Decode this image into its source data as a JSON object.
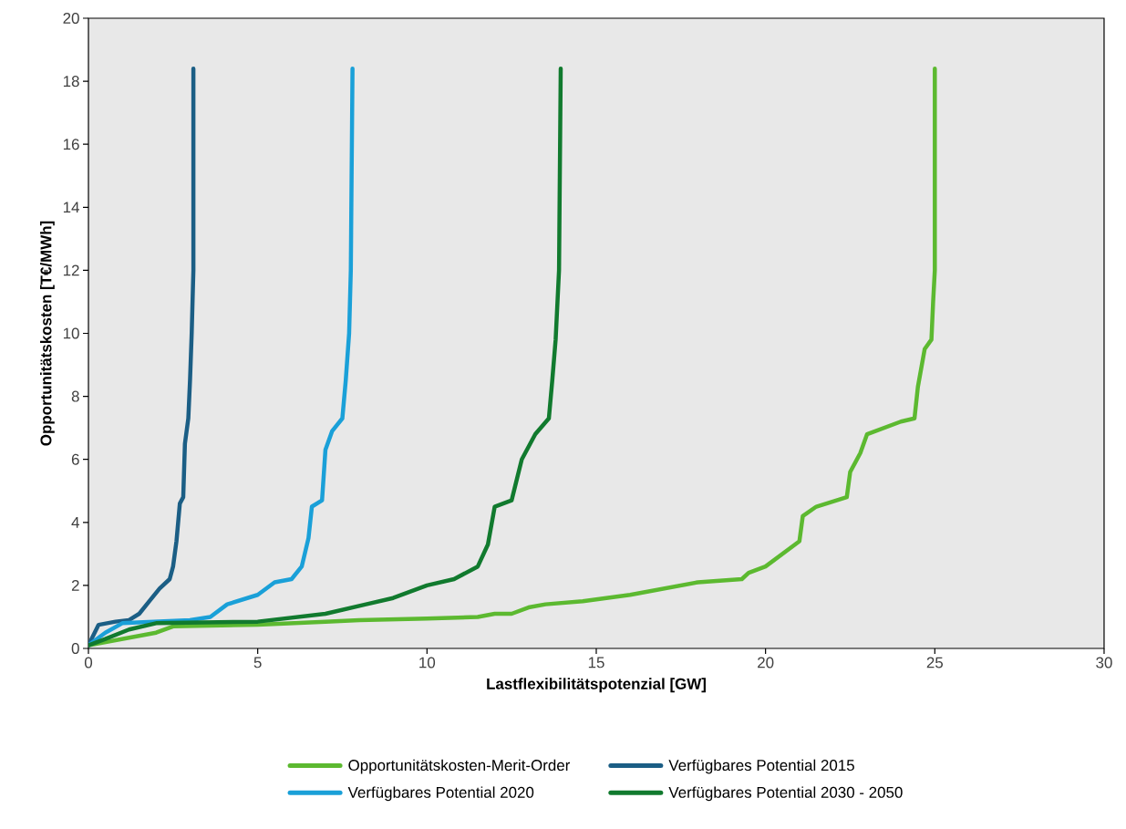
{
  "chart_data": {
    "type": "line",
    "xlabel": "Lastflexibilitätspotenzial [GW]",
    "ylabel": "Opportunitätskosten [T€/MWh]",
    "xlim": [
      0,
      30
    ],
    "xticks": [
      0,
      5,
      10,
      15,
      20,
      25,
      30
    ],
    "ylim": [
      0,
      20
    ],
    "yticks": [
      0,
      2,
      4,
      6,
      8,
      10,
      12,
      14,
      16,
      18,
      20
    ],
    "grid": false,
    "legend": "bottom",
    "marker": "none",
    "line_style": "solid",
    "series": [
      {
        "name": "Opportunitätskosten-Merit-Order",
        "color": "#5cb930",
        "x": [
          0,
          1,
          2,
          2.5,
          5,
          7,
          8,
          10,
          11.5,
          12,
          12.5,
          13,
          13.5,
          14.6,
          16,
          17,
          18,
          19.3,
          19.5,
          20,
          20.5,
          21,
          21.1,
          21.5,
          22.4,
          22.5,
          22.8,
          23,
          23.5,
          24,
          24.4,
          24.5,
          24.7,
          24.9,
          24.95,
          25,
          25
        ],
        "values": [
          0.1,
          0.3,
          0.5,
          0.7,
          0.75,
          0.85,
          0.9,
          0.95,
          1.0,
          1.1,
          1.1,
          1.3,
          1.4,
          1.5,
          1.7,
          1.9,
          2.1,
          2.2,
          2.4,
          2.6,
          3.0,
          3.4,
          4.2,
          4.5,
          4.8,
          5.6,
          6.2,
          6.8,
          7.0,
          7.2,
          7.3,
          8.3,
          9.5,
          9.8,
          11,
          12,
          18.4
        ]
      },
      {
        "name": "Verfügbares Potential 2015",
        "color": "#1b5e85",
        "x": [
          0,
          0.3,
          0.8,
          1.2,
          1.5,
          1.8,
          2.1,
          2.4,
          2.5,
          2.6,
          2.7,
          2.8,
          2.85,
          2.95,
          3.0,
          3.05,
          3.1,
          3.1
        ],
        "values": [
          0.1,
          0.75,
          0.85,
          0.9,
          1.1,
          1.5,
          1.9,
          2.2,
          2.6,
          3.4,
          4.6,
          4.8,
          6.5,
          7.3,
          8.5,
          10,
          12,
          18.4
        ]
      },
      {
        "name": "Verfügbares Potential 2020",
        "color": "#1aa0d8",
        "x": [
          0,
          0.5,
          1,
          3,
          3.6,
          4.1,
          5,
          5.5,
          6,
          6.3,
          6.5,
          6.6,
          6.9,
          7.0,
          7.2,
          7.5,
          7.6,
          7.7,
          7.75,
          7.8
        ],
        "values": [
          0.1,
          0.5,
          0.8,
          0.9,
          1.0,
          1.4,
          1.7,
          2.1,
          2.2,
          2.6,
          3.5,
          4.5,
          4.7,
          6.3,
          6.9,
          7.3,
          8.5,
          10,
          12,
          18.4
        ]
      },
      {
        "name": "Verfügbares Potential 2030 - 2050",
        "color": "#117a2e",
        "x": [
          0,
          0.5,
          1.2,
          2,
          5,
          7,
          8.2,
          9,
          10,
          10.8,
          11.5,
          11.8,
          12,
          12.5,
          12.8,
          13.2,
          13.6,
          13.7,
          13.8,
          13.9,
          13.95
        ],
        "values": [
          0.1,
          0.3,
          0.6,
          0.8,
          0.85,
          1.1,
          1.4,
          1.6,
          2.0,
          2.2,
          2.6,
          3.3,
          4.5,
          4.7,
          6.0,
          6.8,
          7.3,
          8.5,
          9.8,
          12,
          18.4
        ]
      }
    ]
  }
}
